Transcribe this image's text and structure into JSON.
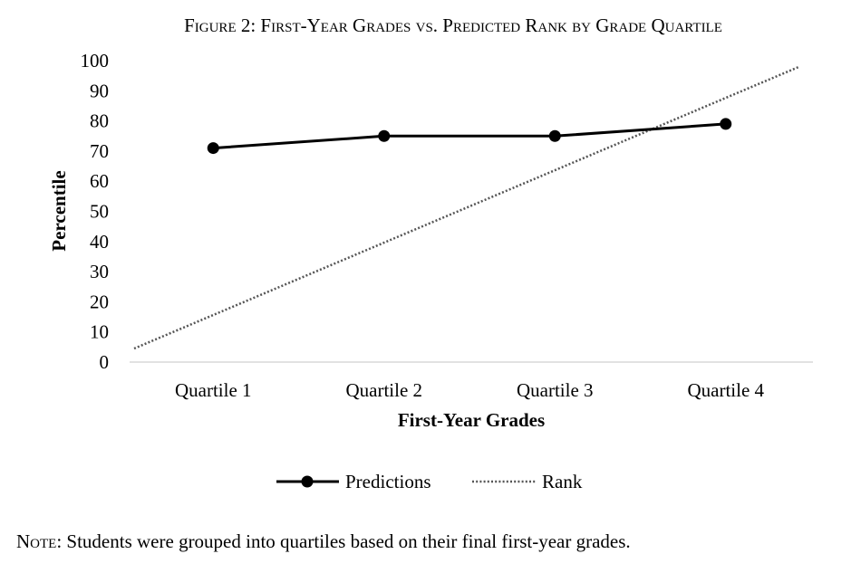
{
  "chart_data": {
    "type": "line",
    "title": "Figure 2: First-Year Grades vs. Predicted Rank by Grade Quartile",
    "xlabel": "First-Year Grades",
    "ylabel": "Percentile",
    "categories": [
      "Quartile 1",
      "Quartile 2",
      "Quartile 3",
      "Quartile 4"
    ],
    "ylim": [
      0,
      100
    ],
    "yticks": [
      0,
      10,
      20,
      30,
      40,
      50,
      60,
      70,
      80,
      90,
      100
    ],
    "grid": false,
    "legend_position": "bottom",
    "series": [
      {
        "name": "Predictions",
        "style": "solid-with-markers",
        "color": "#000000",
        "values": [
          71,
          75,
          75,
          79
        ]
      },
      {
        "name": "Rank",
        "style": "dotted-diagonal",
        "color": "#555555",
        "line_from": 4.5,
        "line_to": 98
      }
    ]
  },
  "note": {
    "lead": "Note:",
    "text": " Students were grouped into quartiles based on their final first-year grades."
  }
}
